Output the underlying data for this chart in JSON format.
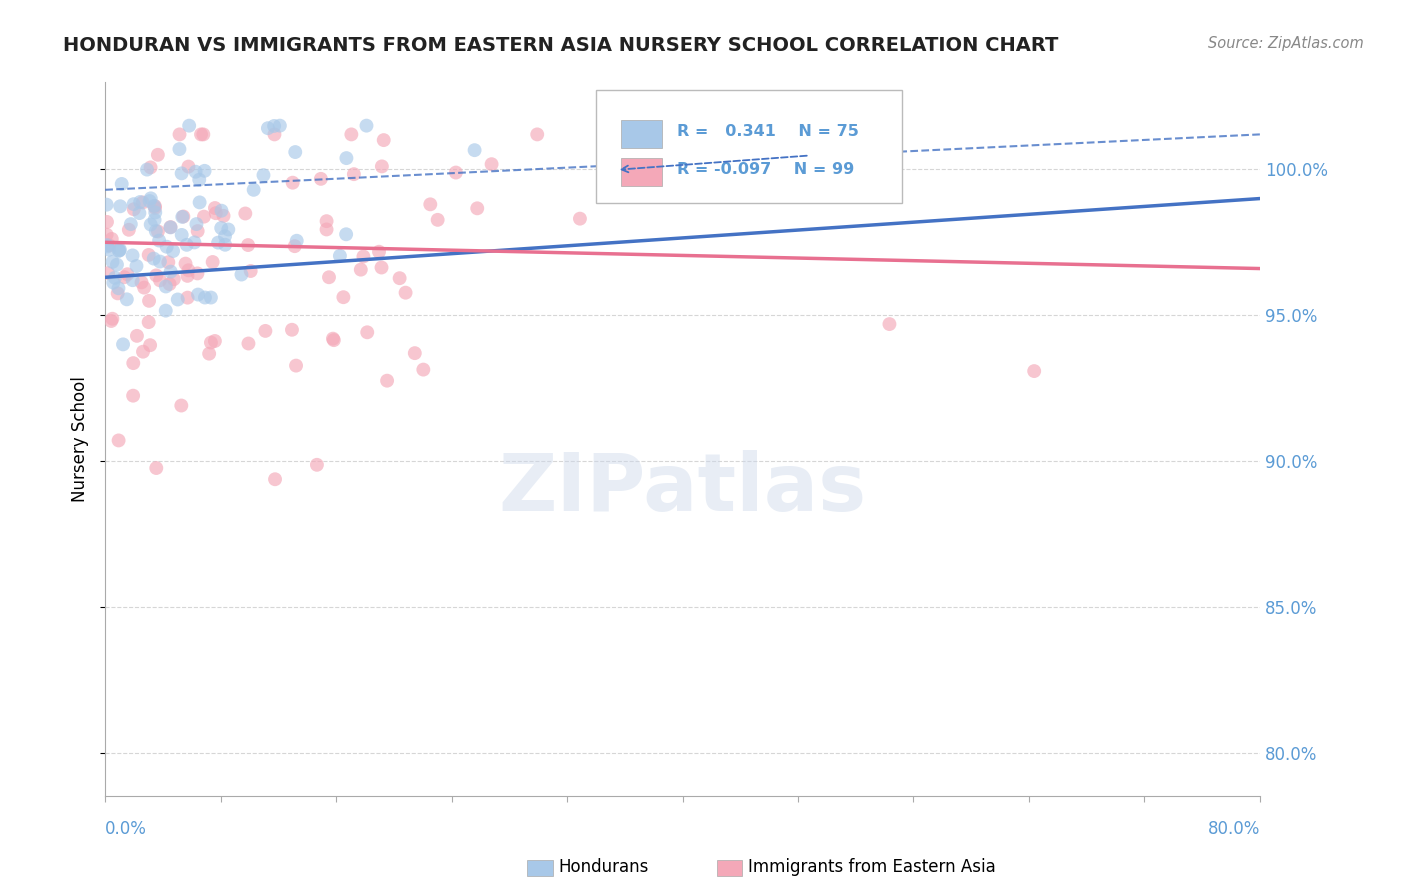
{
  "title": "HONDURAN VS IMMIGRANTS FROM EASTERN ASIA NURSERY SCHOOL CORRELATION CHART",
  "source": "Source: ZipAtlas.com",
  "ylabel": "Nursery School",
  "y_tick_labels": [
    "100.0%",
    "95.0%",
    "90.0%",
    "85.0%",
    "80.0%"
  ],
  "y_tick_values": [
    1.0,
    0.95,
    0.9,
    0.85,
    0.8
  ],
  "xmin": 0.0,
  "xmax": 0.8,
  "ymin": 0.785,
  "ymax": 1.03,
  "blue_R": 0.341,
  "blue_N": 75,
  "pink_R": -0.097,
  "pink_N": 99,
  "blue_color": "#A8C8E8",
  "pink_color": "#F4A8B8",
  "blue_line_color": "#4472C4",
  "pink_line_color": "#E87090",
  "blue_label": "Hondurans",
  "pink_label": "Immigrants from Eastern Asia",
  "watermark": "ZIPatlas",
  "background_color": "#ffffff",
  "grid_color": "#cccccc",
  "tick_label_color": "#5b9bd5",
  "title_color": "#222222",
  "legend_R_color": "#5b9bd5"
}
